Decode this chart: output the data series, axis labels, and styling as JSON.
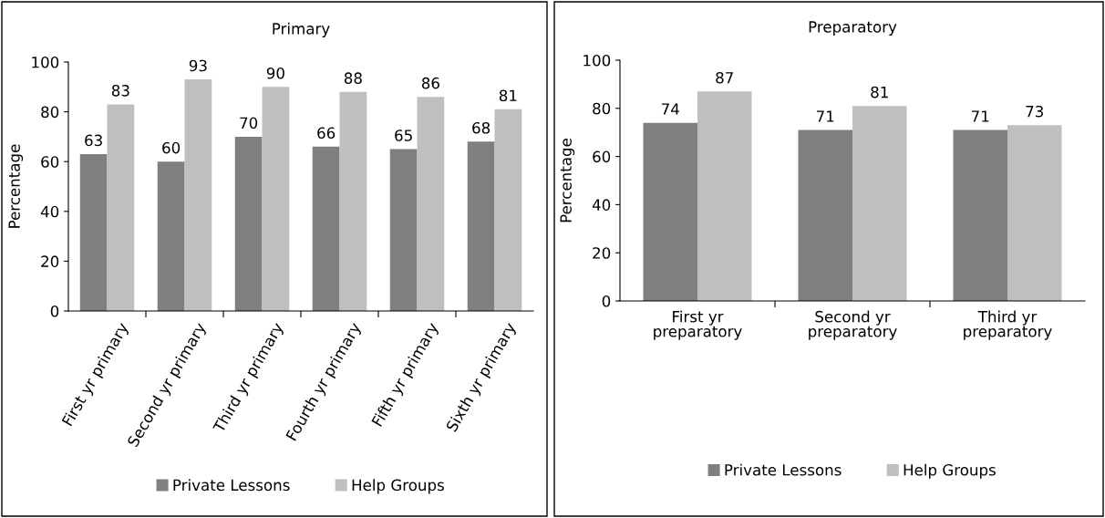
{
  "chart_data": [
    {
      "type": "bar",
      "title": "Primary",
      "ylabel": "Percentage",
      "categories": [
        "First yr primary",
        "Second yr primary",
        "Third yr primary",
        "Fourth yr primary",
        "Fifth yr primary",
        "Sixth yr primary"
      ],
      "series": [
        {
          "name": "Private Lessons",
          "color": "#7f7f7f",
          "values": [
            63,
            60,
            70,
            66,
            65,
            68
          ]
        },
        {
          "name": "Help Groups",
          "color": "#bfbfbf",
          "values": [
            83,
            93,
            90,
            88,
            86,
            81
          ]
        }
      ],
      "ylim": [
        0,
        100
      ],
      "yticks": [
        0,
        20,
        40,
        60,
        80,
        100
      ],
      "data_labels": true,
      "legend": "bottom",
      "grid": false
    },
    {
      "type": "bar",
      "title": "Preparatory",
      "ylabel": "Percentage",
      "categories": [
        "First yr preparatory",
        "Second yr preparatory",
        "Third yr preparatory"
      ],
      "series": [
        {
          "name": "Private Lessons",
          "color": "#7f7f7f",
          "values": [
            74,
            71,
            71
          ]
        },
        {
          "name": "Help Groups",
          "color": "#bfbfbf",
          "values": [
            87,
            81,
            73
          ]
        }
      ],
      "ylim": [
        0,
        100
      ],
      "yticks": [
        0,
        20,
        40,
        60,
        80,
        100
      ],
      "data_labels": true,
      "legend": "bottom",
      "grid": false
    }
  ]
}
